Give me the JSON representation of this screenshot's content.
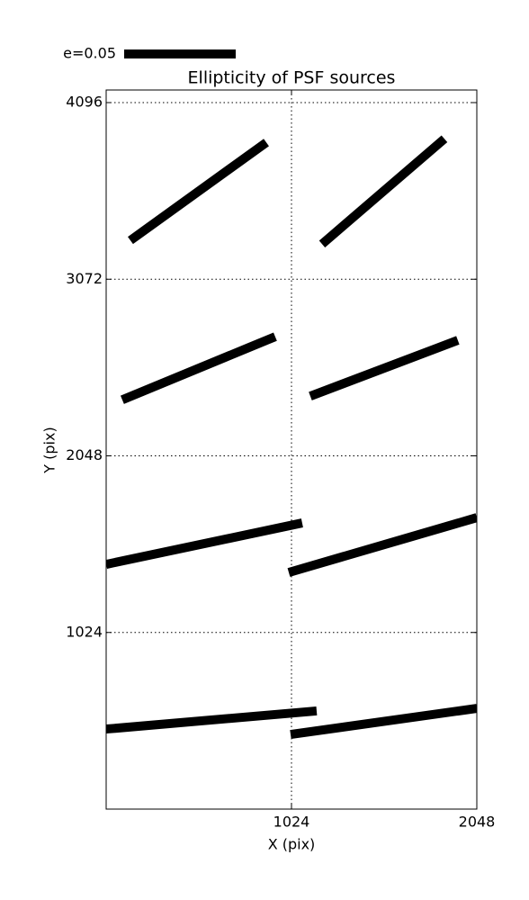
{
  "chart_data": {
    "type": "whisker",
    "title": "Ellipticity of PSF sources",
    "x_label": "X (pix)",
    "y_label": "Y (pix)",
    "legend_label": "e=0.05",
    "xlim": [
      0,
      2048
    ],
    "ylim": [
      0,
      4096
    ],
    "xticks": [
      1024,
      2048
    ],
    "yticks": [
      1024,
      2048,
      3072,
      4096
    ],
    "grid": true,
    "color": "#000000",
    "segments": [
      {
        "x": [
          134,
          885
        ],
        "y": [
          3297,
          3865
        ]
      },
      {
        "x": [
          1193,
          1869
        ],
        "y": [
          3276,
          3886
        ]
      },
      {
        "x": [
          89,
          934
        ],
        "y": [
          2373,
          2739
        ]
      },
      {
        "x": [
          1128,
          1943
        ],
        "y": [
          2394,
          2718
        ]
      },
      {
        "x": [
          0,
          1083
        ],
        "y": [
          1419,
          1659
        ]
      },
      {
        "x": [
          1009,
          2048
        ],
        "y": [
          1372,
          1690
        ]
      },
      {
        "x": [
          0,
          1163
        ],
        "y": [
          464,
          569
        ]
      },
      {
        "x": [
          1019,
          2048
        ],
        "y": [
          433,
          584
        ]
      }
    ]
  }
}
